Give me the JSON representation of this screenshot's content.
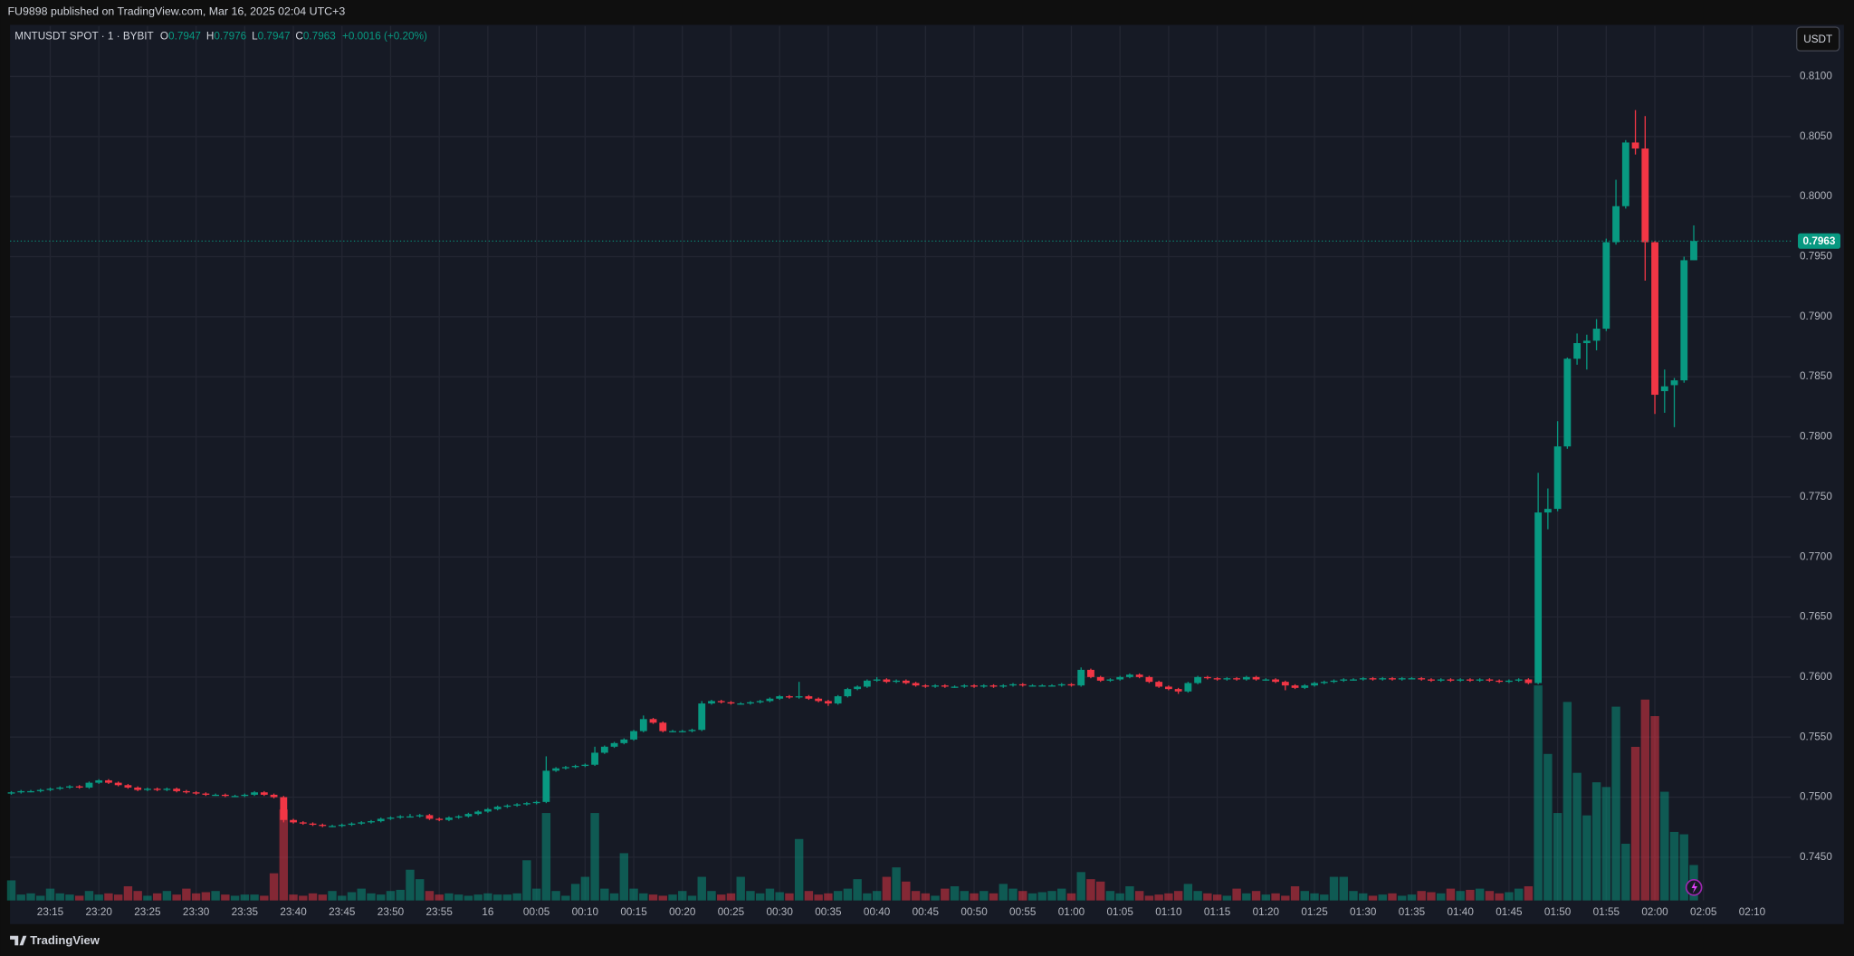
{
  "chart_data": {
    "type": "candlestick",
    "publisher_note": "FU9898 published on TradingView.com, Mar 16, 2025 02:04 UTC+3",
    "symbol": "MNTUSDT SPOT · 1 · BYBIT",
    "ohlc_labels": [
      "O",
      "H",
      "L",
      "C"
    ],
    "change": "+0.0016 (+0.20%)",
    "currency": "USDT",
    "branding": "TradingView",
    "up_color": "#089981",
    "down_color": "#f23645",
    "grid": true,
    "categories": [
      null,
      null,
      null,
      null,
      "23:15",
      null,
      null,
      null,
      null,
      "23:20",
      null,
      null,
      null,
      null,
      "23:25",
      null,
      null,
      null,
      null,
      "23:30",
      null,
      null,
      null,
      null,
      "23:35",
      null,
      null,
      null,
      null,
      "23:40",
      null,
      null,
      null,
      null,
      "23:45",
      null,
      null,
      null,
      null,
      "23:50",
      null,
      null,
      null,
      null,
      "23:55",
      null,
      null,
      null,
      null,
      "16",
      null,
      null,
      null,
      null,
      "00:05",
      null,
      null,
      null,
      null,
      "00:10",
      null,
      null,
      null,
      null,
      "00:15",
      null,
      null,
      null,
      null,
      "00:20",
      null,
      null,
      null,
      null,
      "00:25",
      null,
      null,
      null,
      null,
      "00:30",
      null,
      null,
      null,
      null,
      "00:35",
      null,
      null,
      null,
      null,
      "00:40",
      null,
      null,
      null,
      null,
      "00:45",
      null,
      null,
      null,
      null,
      "00:50",
      null,
      null,
      null,
      null,
      "00:55",
      null,
      null,
      null,
      null,
      "01:00",
      null,
      null,
      null,
      null,
      "01:05",
      null,
      null,
      null,
      null,
      "01:10",
      null,
      null,
      null,
      null,
      "01:15",
      null,
      null,
      null,
      null,
      "01:20",
      null,
      null,
      null,
      null,
      "01:25",
      null,
      null,
      null,
      null,
      "01:30",
      null,
      null,
      null,
      null,
      "01:35",
      null,
      null,
      null,
      null,
      "01:40",
      null,
      null,
      null,
      null,
      "01:45",
      null,
      null,
      null,
      null,
      "01:50",
      null,
      null,
      null,
      null,
      "01:55",
      null,
      null,
      null,
      null,
      "02:00",
      null,
      null,
      null,
      null,
      "02:05",
      null,
      null,
      null,
      null,
      "02:10"
    ],
    "ohlc": [
      [
        0.7503,
        0.7505,
        0.7502,
        0.7504
      ],
      [
        0.7504,
        0.7506,
        0.7503,
        0.7505
      ],
      [
        0.7505,
        0.7506,
        0.7504,
        0.7505
      ],
      [
        0.7505,
        0.7507,
        0.7504,
        0.7506
      ],
      [
        0.7506,
        0.7508,
        0.7505,
        0.7507
      ],
      [
        0.7507,
        0.7509,
        0.7506,
        0.7508
      ],
      [
        0.7508,
        0.751,
        0.7507,
        0.7509
      ],
      [
        0.7509,
        0.751,
        0.7507,
        0.7508
      ],
      [
        0.7508,
        0.7513,
        0.7507,
        0.7512
      ],
      [
        0.7512,
        0.7515,
        0.7511,
        0.7514
      ],
      [
        0.7514,
        0.7515,
        0.7511,
        0.7512
      ],
      [
        0.7512,
        0.7513,
        0.7509,
        0.751
      ],
      [
        0.751,
        0.7511,
        0.7507,
        0.7508
      ],
      [
        0.7508,
        0.7509,
        0.7505,
        0.7506
      ],
      [
        0.7506,
        0.7508,
        0.7505,
        0.7507
      ],
      [
        0.7507,
        0.7508,
        0.7505,
        0.7506
      ],
      [
        0.7506,
        0.7508,
        0.7505,
        0.7507
      ],
      [
        0.7507,
        0.7508,
        0.7504,
        0.7505
      ],
      [
        0.7505,
        0.7506,
        0.7503,
        0.7504
      ],
      [
        0.7504,
        0.7505,
        0.7502,
        0.7503
      ],
      [
        0.7503,
        0.7504,
        0.7501,
        0.7502
      ],
      [
        0.7502,
        0.7503,
        0.7501,
        0.7502
      ],
      [
        0.7502,
        0.7503,
        0.75,
        0.7501
      ],
      [
        0.7501,
        0.7502,
        0.75,
        0.7501
      ],
      [
        0.7501,
        0.7503,
        0.75,
        0.7502
      ],
      [
        0.7502,
        0.7505,
        0.7501,
        0.7504
      ],
      [
        0.7504,
        0.7505,
        0.7501,
        0.7502
      ],
      [
        0.7502,
        0.7503,
        0.7499,
        0.75
      ],
      [
        0.75,
        0.7501,
        0.7479,
        0.7481
      ],
      [
        0.7481,
        0.7482,
        0.7478,
        0.7479
      ],
      [
        0.7479,
        0.748,
        0.7477,
        0.7478
      ],
      [
        0.7478,
        0.7479,
        0.7476,
        0.7477
      ],
      [
        0.7477,
        0.7478,
        0.7475,
        0.7476
      ],
      [
        0.7476,
        0.7477,
        0.7475,
        0.7476
      ],
      [
        0.7476,
        0.7478,
        0.7475,
        0.7477
      ],
      [
        0.7477,
        0.7479,
        0.7476,
        0.7478
      ],
      [
        0.7478,
        0.748,
        0.7477,
        0.7479
      ],
      [
        0.7479,
        0.7481,
        0.7478,
        0.748
      ],
      [
        0.748,
        0.7483,
        0.7479,
        0.7482
      ],
      [
        0.7482,
        0.7484,
        0.7481,
        0.7483
      ],
      [
        0.7483,
        0.7485,
        0.7482,
        0.7484
      ],
      [
        0.7484,
        0.7486,
        0.7483,
        0.7484
      ],
      [
        0.7484,
        0.7486,
        0.7483,
        0.7485
      ],
      [
        0.7485,
        0.7486,
        0.7481,
        0.7482
      ],
      [
        0.7482,
        0.7483,
        0.748,
        0.7481
      ],
      [
        0.7481,
        0.7484,
        0.748,
        0.7483
      ],
      [
        0.7483,
        0.7485,
        0.7482,
        0.7484
      ],
      [
        0.7484,
        0.7487,
        0.7483,
        0.7486
      ],
      [
        0.7486,
        0.7489,
        0.7485,
        0.7488
      ],
      [
        0.7488,
        0.7491,
        0.7487,
        0.749
      ],
      [
        0.749,
        0.7493,
        0.7489,
        0.7492
      ],
      [
        0.7492,
        0.7494,
        0.7491,
        0.7493
      ],
      [
        0.7493,
        0.7495,
        0.7492,
        0.7494
      ],
      [
        0.7494,
        0.7496,
        0.7493,
        0.7495
      ],
      [
        0.7495,
        0.7497,
        0.7494,
        0.7496
      ],
      [
        0.7496,
        0.7534,
        0.7495,
        0.7522
      ],
      [
        0.7522,
        0.7525,
        0.7521,
        0.7524
      ],
      [
        0.7524,
        0.7526,
        0.7523,
        0.7525
      ],
      [
        0.7525,
        0.7527,
        0.7524,
        0.7526
      ],
      [
        0.7526,
        0.7528,
        0.7525,
        0.7527
      ],
      [
        0.7527,
        0.7542,
        0.7526,
        0.7537
      ],
      [
        0.7537,
        0.7543,
        0.7536,
        0.7542
      ],
      [
        0.7542,
        0.7546,
        0.7541,
        0.7545
      ],
      [
        0.7545,
        0.7549,
        0.7544,
        0.7548
      ],
      [
        0.7548,
        0.7556,
        0.7547,
        0.7555
      ],
      [
        0.7555,
        0.7568,
        0.7554,
        0.7565
      ],
      [
        0.7565,
        0.7566,
        0.7561,
        0.7562
      ],
      [
        0.7562,
        0.7563,
        0.7554,
        0.7555
      ],
      [
        0.7555,
        0.7556,
        0.7554,
        0.7555
      ],
      [
        0.7555,
        0.7556,
        0.7554,
        0.7555
      ],
      [
        0.7555,
        0.7557,
        0.7554,
        0.7556
      ],
      [
        0.7556,
        0.758,
        0.7555,
        0.7578
      ],
      [
        0.7578,
        0.7581,
        0.7577,
        0.758
      ],
      [
        0.758,
        0.7581,
        0.7578,
        0.7579
      ],
      [
        0.7579,
        0.758,
        0.7577,
        0.7578
      ],
      [
        0.7578,
        0.7579,
        0.7577,
        0.7578
      ],
      [
        0.7578,
        0.758,
        0.7577,
        0.7579
      ],
      [
        0.7579,
        0.7581,
        0.7578,
        0.758
      ],
      [
        0.758,
        0.7583,
        0.7579,
        0.7582
      ],
      [
        0.7582,
        0.7585,
        0.7581,
        0.7584
      ],
      [
        0.7584,
        0.7585,
        0.7582,
        0.7583
      ],
      [
        0.7583,
        0.7596,
        0.7582,
        0.7584
      ],
      [
        0.7584,
        0.7585,
        0.7581,
        0.7582
      ],
      [
        0.7582,
        0.7583,
        0.7579,
        0.758
      ],
      [
        0.758,
        0.7581,
        0.7576,
        0.7578
      ],
      [
        0.7578,
        0.7585,
        0.7577,
        0.7584
      ],
      [
        0.7584,
        0.7591,
        0.7583,
        0.759
      ],
      [
        0.759,
        0.7593,
        0.7589,
        0.7592
      ],
      [
        0.7592,
        0.7598,
        0.7591,
        0.7597
      ],
      [
        0.7597,
        0.76,
        0.7596,
        0.7598
      ],
      [
        0.7598,
        0.7599,
        0.7595,
        0.7596
      ],
      [
        0.7596,
        0.7598,
        0.7595,
        0.7597
      ],
      [
        0.7597,
        0.7598,
        0.7594,
        0.7595
      ],
      [
        0.7595,
        0.7596,
        0.7592,
        0.7593
      ],
      [
        0.7593,
        0.7594,
        0.7591,
        0.7592
      ],
      [
        0.7592,
        0.7594,
        0.7591,
        0.7593
      ],
      [
        0.7593,
        0.7594,
        0.7591,
        0.7592
      ],
      [
        0.7592,
        0.7593,
        0.7591,
        0.7592
      ],
      [
        0.7592,
        0.7594,
        0.7591,
        0.7593
      ],
      [
        0.7593,
        0.7594,
        0.7591,
        0.7592
      ],
      [
        0.7592,
        0.7594,
        0.7591,
        0.7593
      ],
      [
        0.7593,
        0.7594,
        0.7591,
        0.7592
      ],
      [
        0.7592,
        0.7594,
        0.7591,
        0.7593
      ],
      [
        0.7593,
        0.7595,
        0.7592,
        0.7594
      ],
      [
        0.7594,
        0.7595,
        0.7592,
        0.7593
      ],
      [
        0.7593,
        0.7594,
        0.7592,
        0.7593
      ],
      [
        0.7593,
        0.7594,
        0.7592,
        0.7593
      ],
      [
        0.7593,
        0.7594,
        0.7592,
        0.7593
      ],
      [
        0.7593,
        0.7595,
        0.7592,
        0.7594
      ],
      [
        0.7594,
        0.7595,
        0.7592,
        0.7593
      ],
      [
        0.7593,
        0.7608,
        0.7592,
        0.7606
      ],
      [
        0.7606,
        0.7607,
        0.7599,
        0.76
      ],
      [
        0.76,
        0.7601,
        0.7596,
        0.7597
      ],
      [
        0.7597,
        0.7599,
        0.7596,
        0.7598
      ],
      [
        0.7598,
        0.7601,
        0.7597,
        0.76
      ],
      [
        0.76,
        0.7603,
        0.7599,
        0.7602
      ],
      [
        0.7602,
        0.7603,
        0.7599,
        0.76
      ],
      [
        0.76,
        0.7601,
        0.7595,
        0.7596
      ],
      [
        0.7596,
        0.7597,
        0.7591,
        0.7592
      ],
      [
        0.7592,
        0.7593,
        0.7589,
        0.759
      ],
      [
        0.759,
        0.7591,
        0.7586,
        0.7588
      ],
      [
        0.7588,
        0.7596,
        0.7587,
        0.7595
      ],
      [
        0.7595,
        0.7601,
        0.7594,
        0.76
      ],
      [
        0.76,
        0.7601,
        0.7598,
        0.7599
      ],
      [
        0.7599,
        0.76,
        0.7597,
        0.7598
      ],
      [
        0.7598,
        0.76,
        0.7597,
        0.7599
      ],
      [
        0.7599,
        0.76,
        0.7597,
        0.7598
      ],
      [
        0.7598,
        0.7601,
        0.7597,
        0.76
      ],
      [
        0.76,
        0.7601,
        0.7597,
        0.7598
      ],
      [
        0.7598,
        0.7599,
        0.7597,
        0.7598
      ],
      [
        0.7598,
        0.7599,
        0.7595,
        0.7596
      ],
      [
        0.7596,
        0.7597,
        0.7589,
        0.7593
      ],
      [
        0.7593,
        0.7594,
        0.759,
        0.7591
      ],
      [
        0.7591,
        0.7594,
        0.759,
        0.7593
      ],
      [
        0.7593,
        0.7596,
        0.7592,
        0.7595
      ],
      [
        0.7595,
        0.7597,
        0.7594,
        0.7596
      ],
      [
        0.7596,
        0.7598,
        0.7595,
        0.7597
      ],
      [
        0.7597,
        0.7599,
        0.7596,
        0.7598
      ],
      [
        0.7598,
        0.7599,
        0.7597,
        0.7598
      ],
      [
        0.7598,
        0.76,
        0.7597,
        0.7599
      ],
      [
        0.7599,
        0.76,
        0.7597,
        0.7598
      ],
      [
        0.7598,
        0.76,
        0.7597,
        0.7599
      ],
      [
        0.7599,
        0.76,
        0.7597,
        0.7598
      ],
      [
        0.7598,
        0.76,
        0.7597,
        0.7599
      ],
      [
        0.7599,
        0.76,
        0.7598,
        0.7599
      ],
      [
        0.7599,
        0.76,
        0.7597,
        0.7598
      ],
      [
        0.7598,
        0.7599,
        0.7596,
        0.7597
      ],
      [
        0.7597,
        0.7599,
        0.7596,
        0.7598
      ],
      [
        0.7598,
        0.7599,
        0.7596,
        0.7597
      ],
      [
        0.7597,
        0.7599,
        0.7596,
        0.7598
      ],
      [
        0.7598,
        0.7599,
        0.7596,
        0.7597
      ],
      [
        0.7597,
        0.7599,
        0.7596,
        0.7598
      ],
      [
        0.7598,
        0.7599,
        0.7596,
        0.7597
      ],
      [
        0.7597,
        0.7598,
        0.7595,
        0.7596
      ],
      [
        0.7596,
        0.7598,
        0.7595,
        0.7597
      ],
      [
        0.7597,
        0.7599,
        0.7596,
        0.7598
      ],
      [
        0.7598,
        0.7599,
        0.7594,
        0.7595
      ],
      [
        0.7595,
        0.777,
        0.7594,
        0.7737
      ],
      [
        0.7737,
        0.7757,
        0.7723,
        0.774
      ],
      [
        0.774,
        0.7813,
        0.7738,
        0.7792
      ],
      [
        0.7792,
        0.7866,
        0.779,
        0.7865
      ],
      [
        0.7865,
        0.7886,
        0.786,
        0.7878
      ],
      [
        0.7878,
        0.7885,
        0.7856,
        0.788
      ],
      [
        0.788,
        0.7898,
        0.7872,
        0.789
      ],
      [
        0.789,
        0.7965,
        0.7888,
        0.7962
      ],
      [
        0.7962,
        0.8014,
        0.796,
        0.7992
      ],
      [
        0.7992,
        0.8047,
        0.799,
        0.8045
      ],
      [
        0.8045,
        0.8072,
        0.8035,
        0.804
      ],
      [
        0.804,
        0.8067,
        0.793,
        0.7962
      ],
      [
        0.7962,
        0.7963,
        0.7819,
        0.7835
      ],
      [
        0.7838,
        0.7856,
        0.782,
        0.7842
      ],
      [
        0.7843,
        0.7849,
        0.7808,
        0.7847
      ],
      [
        0.7847,
        0.795,
        0.7845,
        0.7947
      ],
      [
        0.7947,
        0.7976,
        0.7947,
        0.7963
      ],
      null,
      null,
      null,
      null,
      null,
      null
    ],
    "volume": [
      17,
      5,
      6,
      4,
      10,
      6,
      5,
      4,
      8,
      5,
      6,
      5,
      12,
      8,
      4,
      6,
      8,
      5,
      10,
      6,
      7,
      8,
      5,
      4,
      5,
      5,
      4,
      23,
      77,
      5,
      4,
      6,
      5,
      8,
      4,
      7,
      10,
      6,
      5,
      8,
      9,
      26,
      18,
      8,
      5,
      6,
      5,
      4,
      5,
      6,
      5,
      5,
      6,
      34,
      10,
      74,
      8,
      4,
      14,
      20,
      74,
      10,
      6,
      40,
      10,
      6,
      5,
      4,
      5,
      8,
      4,
      20,
      8,
      5,
      6,
      20,
      8,
      6,
      10,
      7,
      6,
      52,
      8,
      5,
      6,
      8,
      10,
      18,
      6,
      8,
      20,
      28,
      16,
      8,
      6,
      4,
      10,
      12,
      8,
      6,
      8,
      6,
      14,
      10,
      8,
      6,
      7,
      8,
      10,
      6,
      24,
      18,
      16,
      8,
      6,
      12,
      8,
      4,
      5,
      6,
      8,
      14,
      8,
      6,
      5,
      4,
      10,
      6,
      8,
      5,
      6,
      4,
      12,
      8,
      6,
      5,
      20,
      20,
      8,
      6,
      4,
      5,
      6,
      4,
      5,
      8,
      7,
      6,
      10,
      8,
      9,
      10,
      8,
      6,
      7,
      10,
      12,
      182,
      124,
      74,
      168,
      108,
      72,
      100,
      96,
      164,
      48,
      130,
      170,
      156,
      92,
      58,
      56,
      30,
      null,
      null,
      null,
      null,
      null,
      null
    ],
    "ylim": [
      0.7414,
      0.8142
    ],
    "yticks": [
      {
        "value": 0.745,
        "label": "0.7450"
      },
      {
        "value": 0.75,
        "label": "0.7500"
      },
      {
        "value": 0.755,
        "label": "0.7550"
      },
      {
        "value": 0.76,
        "label": "0.7600"
      },
      {
        "value": 0.765,
        "label": "0.7650"
      },
      {
        "value": 0.77,
        "label": "0.7700"
      },
      {
        "value": 0.775,
        "label": "0.7750"
      },
      {
        "value": 0.78,
        "label": "0.7800"
      },
      {
        "value": 0.785,
        "label": "0.7850"
      },
      {
        "value": 0.79,
        "label": "0.7900"
      },
      {
        "value": 0.795,
        "label": "0.7950"
      },
      {
        "value": 0.8,
        "label": "0.8000"
      },
      {
        "value": 0.805,
        "label": "0.8050"
      },
      {
        "value": 0.81,
        "label": "0.8100"
      }
    ]
  }
}
